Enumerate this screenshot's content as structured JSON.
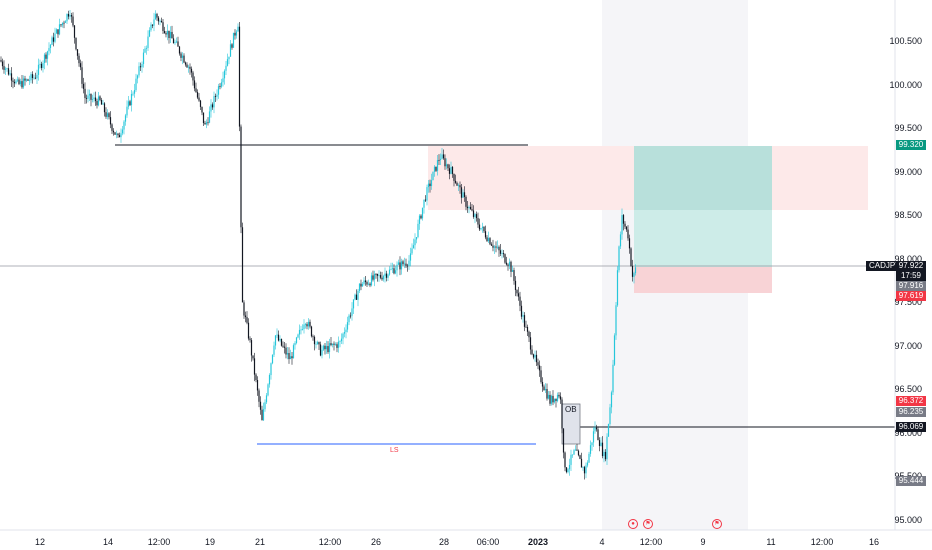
{
  "symbol": "CADJPY",
  "colors": {
    "up": "#26c6da",
    "down": "#131722",
    "session_shade": "#f5f5f8",
    "supply_zone": "#fde9e9",
    "target_zone": "#cdece8",
    "stop_zone": "#f8d3d6",
    "liquidity_line": "#2962ff",
    "ls_label": "#f23645"
  },
  "y_axis": {
    "ticks": [
      "100.500",
      "100.000",
      "99.500",
      "99.000",
      "98.500",
      "98.000",
      "97.500",
      "97.000",
      "96.500",
      "96.000",
      "95.500",
      "95.000"
    ],
    "range": [
      94.85,
      101.05
    ]
  },
  "x_axis": {
    "ticks": [
      "12",
      "14",
      "12:00",
      "19",
      "21",
      "12:00",
      "26",
      "28",
      "06:00",
      "2023",
      "4",
      "12:00",
      "9",
      "11",
      "12:00",
      "16"
    ],
    "bold_tick": "2023"
  },
  "price_tags": {
    "target": "99.320",
    "last_price": "97.922",
    "countdown": "17:59",
    "entry": "97.916",
    "stop": "97.619",
    "level_1": "96.372",
    "level_2": "96.235",
    "level_3": "96.069",
    "low_marker": "95.444"
  },
  "annotations": {
    "ls": "LS",
    "ob": "OB"
  },
  "events": [
    {
      "icon": "event-dot-icon",
      "glyph": "●"
    },
    {
      "icon": "flag-icon",
      "glyph": "⚑"
    },
    {
      "icon": "flag-icon",
      "glyph": "⚑"
    }
  ],
  "chart_data": {
    "type": "candlestick",
    "instrument": "CADJPY",
    "approx_path": [
      {
        "x": 0,
        "y": 100.4
      },
      {
        "x": 18,
        "y": 100.1
      },
      {
        "x": 35,
        "y": 100.2
      },
      {
        "x": 55,
        "y": 100.7
      },
      {
        "x": 70,
        "y": 101.0
      },
      {
        "x": 85,
        "y": 99.95
      },
      {
        "x": 100,
        "y": 99.9
      },
      {
        "x": 118,
        "y": 99.45
      },
      {
        "x": 135,
        "y": 100.1
      },
      {
        "x": 155,
        "y": 100.95
      },
      {
        "x": 175,
        "y": 100.6
      },
      {
        "x": 190,
        "y": 100.3
      },
      {
        "x": 205,
        "y": 99.6
      },
      {
        "x": 222,
        "y": 100.2
      },
      {
        "x": 238,
        "y": 100.85
      },
      {
        "x": 242,
        "y": 97.5
      },
      {
        "x": 250,
        "y": 97.0
      },
      {
        "x": 262,
        "y": 96.05
      },
      {
        "x": 275,
        "y": 97.1
      },
      {
        "x": 290,
        "y": 96.8
      },
      {
        "x": 305,
        "y": 97.3
      },
      {
        "x": 320,
        "y": 96.9
      },
      {
        "x": 340,
        "y": 97.0
      },
      {
        "x": 360,
        "y": 97.7
      },
      {
        "x": 380,
        "y": 97.8
      },
      {
        "x": 395,
        "y": 97.9
      },
      {
        "x": 410,
        "y": 98.0
      },
      {
        "x": 425,
        "y": 98.75
      },
      {
        "x": 440,
        "y": 99.25
      },
      {
        "x": 452,
        "y": 99.05
      },
      {
        "x": 465,
        "y": 98.7
      },
      {
        "x": 480,
        "y": 98.4
      },
      {
        "x": 495,
        "y": 98.15
      },
      {
        "x": 510,
        "y": 97.95
      },
      {
        "x": 525,
        "y": 97.2
      },
      {
        "x": 540,
        "y": 96.6
      },
      {
        "x": 550,
        "y": 96.3
      },
      {
        "x": 560,
        "y": 96.4
      },
      {
        "x": 565,
        "y": 95.45
      },
      {
        "x": 575,
        "y": 95.7
      },
      {
        "x": 585,
        "y": 95.45
      },
      {
        "x": 595,
        "y": 96.0
      },
      {
        "x": 605,
        "y": 95.6
      },
      {
        "x": 612,
        "y": 96.5
      },
      {
        "x": 618,
        "y": 98.0
      },
      {
        "x": 622,
        "y": 98.5
      },
      {
        "x": 628,
        "y": 98.3
      },
      {
        "x": 633,
        "y": 97.75
      },
      {
        "x": 636,
        "y": 97.92
      }
    ]
  }
}
